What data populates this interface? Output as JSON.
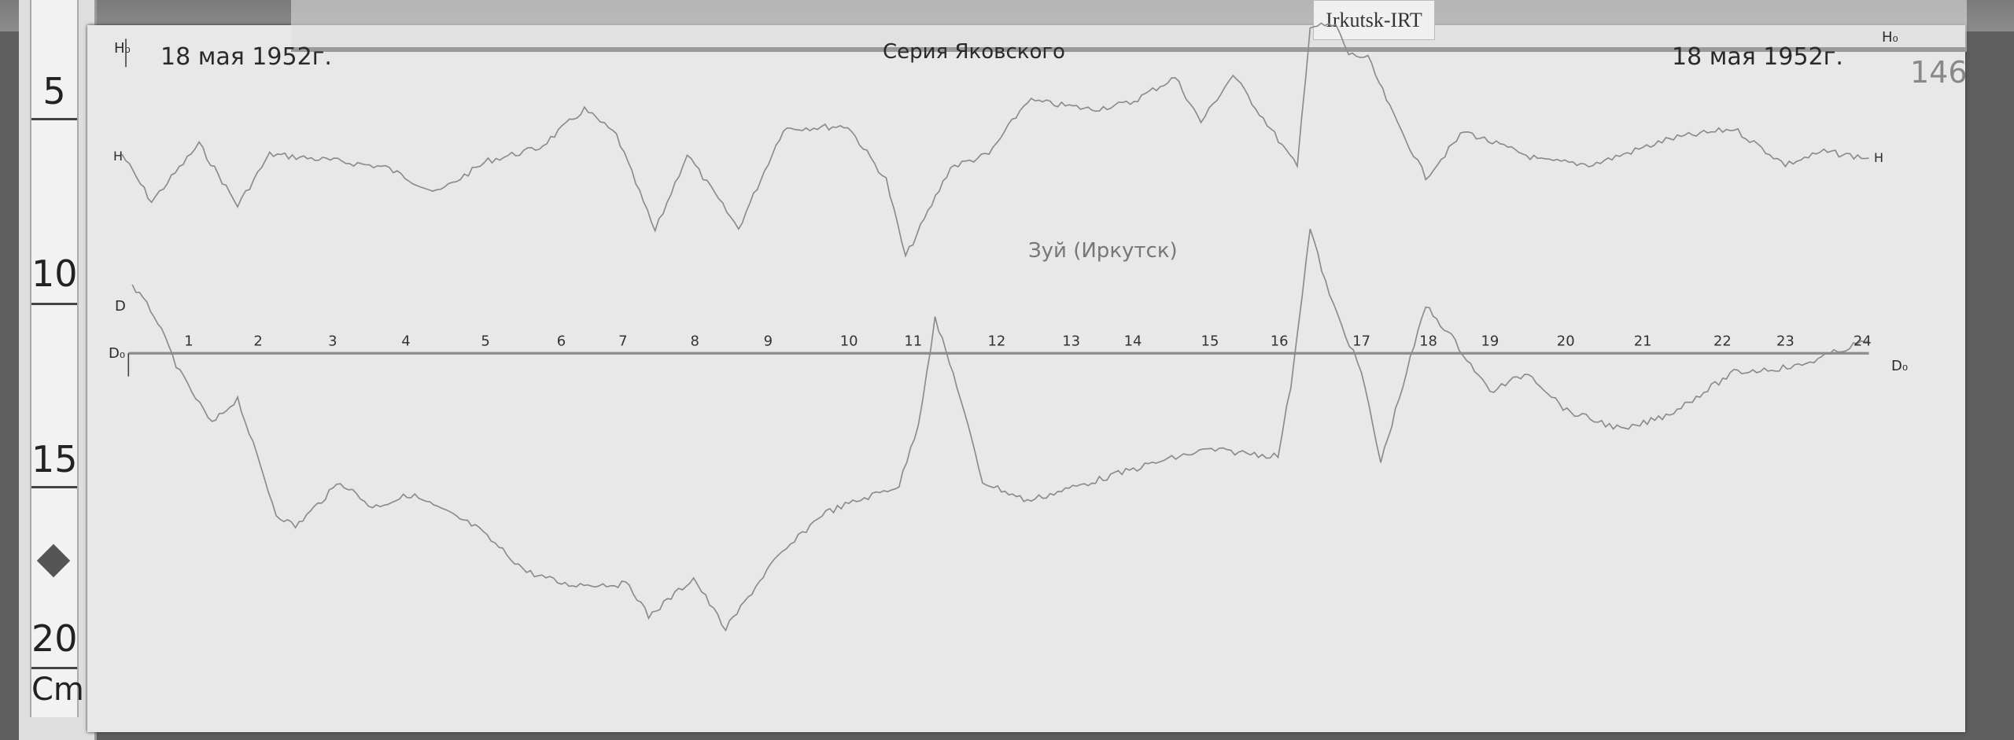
{
  "ruler": {
    "marks": [
      "5",
      "10",
      "15",
      "20"
    ],
    "unit": "Cm"
  },
  "tag_label": "Irkutsk-IRT",
  "header": {
    "date_left": "18 мая 1952г.",
    "series": "Серия Яковского",
    "date_right": "18 мая 1952г.",
    "page_number": "146",
    "h_label_left": "H₀",
    "h_label_right": "H₀"
  },
  "annotation": "Зуй (Иркутск)",
  "trace_labels": {
    "h_left": "H",
    "h_right": "H",
    "d_trace": "D",
    "d_base": "D₀",
    "d_base_right": "D₀"
  },
  "hour_ticks": [
    "1",
    "2",
    "3",
    "4",
    "5",
    "6",
    "7",
    "8",
    "9",
    "10",
    "11",
    "12",
    "13",
    "14",
    "15",
    "16",
    "17",
    "18",
    "19",
    "20",
    "21",
    "22",
    "23",
    "24"
  ],
  "colors": {
    "paper": "#e8e8e8",
    "trace": "#8a8a8a",
    "ink": "#2a2a2a",
    "board": "#5e5e5e"
  }
}
